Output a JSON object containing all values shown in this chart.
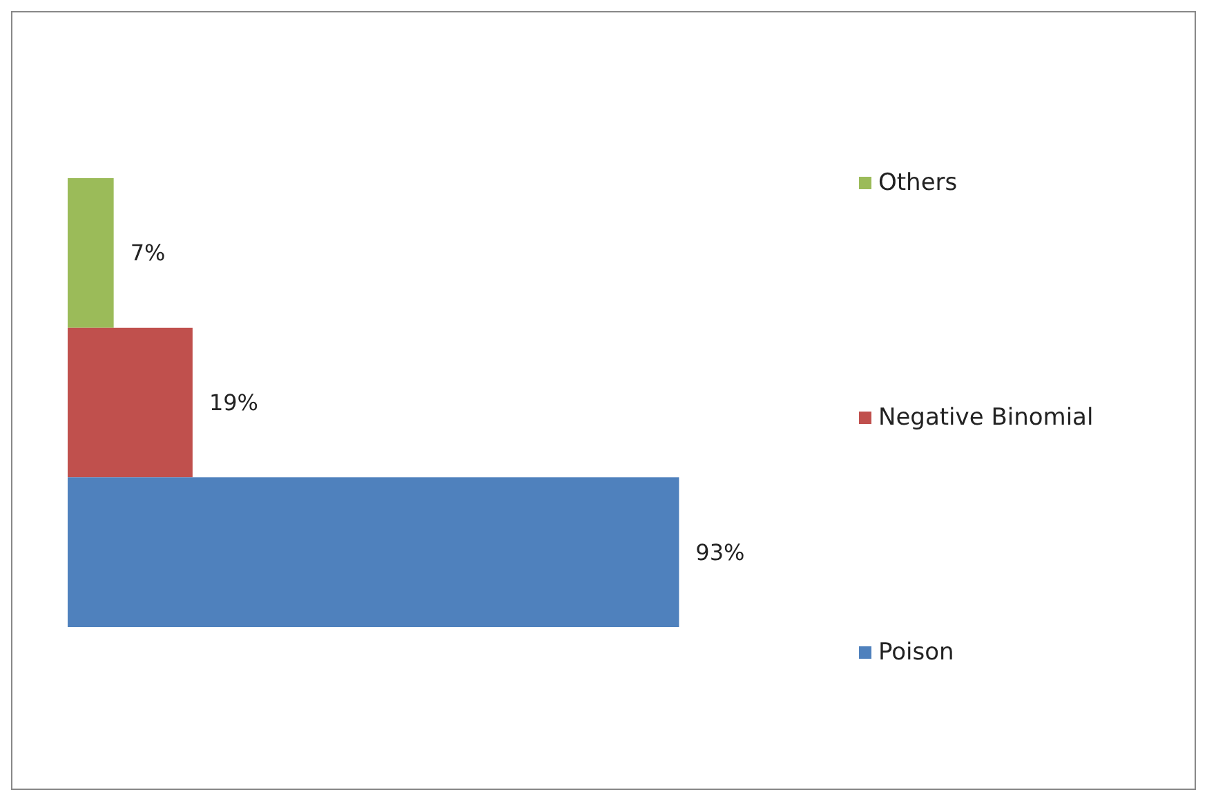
{
  "chart_data": {
    "type": "bar",
    "orientation": "horizontal",
    "categories": [
      null
    ],
    "series": [
      {
        "name": "Others",
        "color": "#9bbb59",
        "values": [
          7
        ],
        "value_labels": [
          "7%"
        ]
      },
      {
        "name": "Negative Binomial",
        "color": "#c0504d",
        "values": [
          19
        ],
        "value_labels": [
          "19%"
        ]
      },
      {
        "name": "Poison",
        "color": "#4f81bd",
        "values": [
          93
        ],
        "value_labels": [
          "93%"
        ]
      }
    ],
    "legend": "right"
  }
}
